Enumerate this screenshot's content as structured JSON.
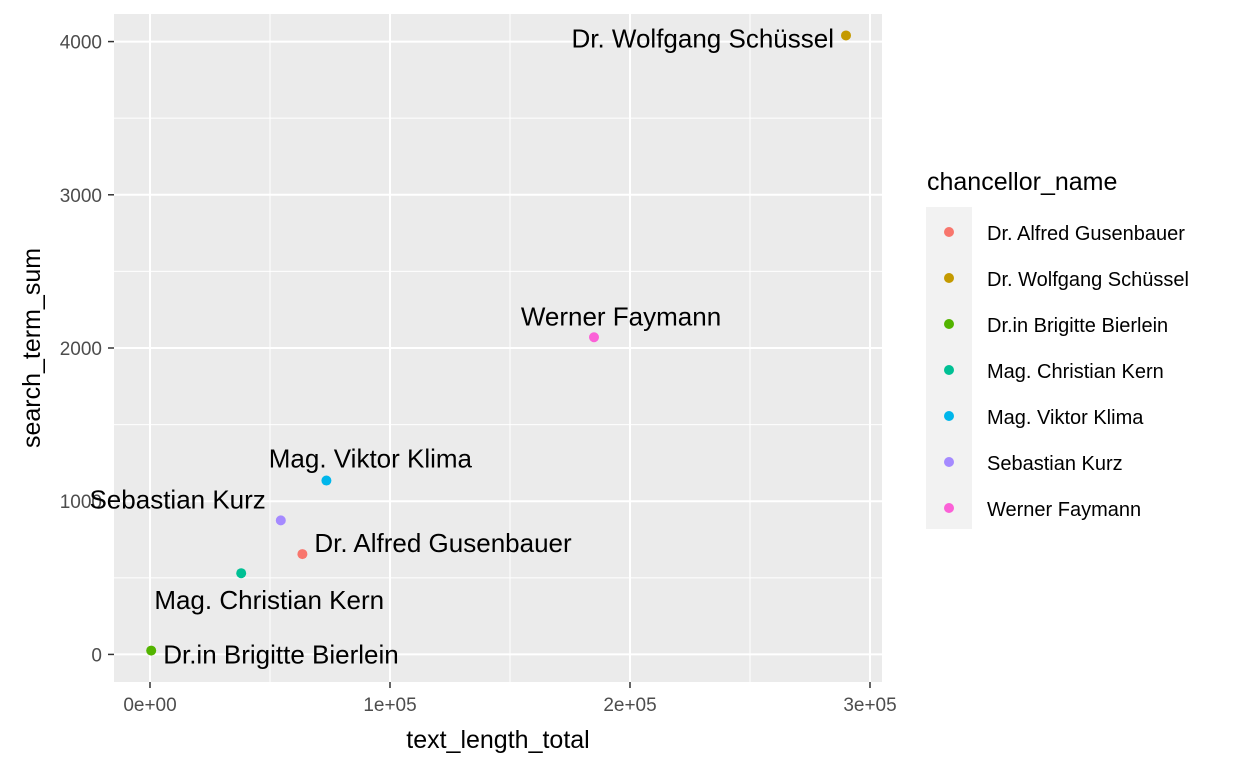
{
  "chart_data": {
    "type": "scatter",
    "xlabel": "text_length_total",
    "ylabel": "search_term_sum",
    "xlim": [
      -15000,
      305000
    ],
    "ylim": [
      -180,
      4180
    ],
    "x_ticks": [
      0,
      100000,
      200000,
      300000
    ],
    "x_tick_labels": [
      "0e+00",
      "1e+05",
      "2e+05",
      "3e+05"
    ],
    "y_ticks": [
      0,
      1000,
      2000,
      3000,
      4000
    ],
    "y_tick_labels": [
      "0",
      "1000",
      "2000",
      "3000",
      "4000"
    ],
    "grid": true,
    "legend": {
      "title": "chancellor_name",
      "placement": "right"
    },
    "series": [
      {
        "name": "Dr. Alfred Gusenbauer",
        "color": "#F8766D",
        "x": 63500,
        "y": 655
      },
      {
        "name": "Dr. Wolfgang Schüssel",
        "color": "#C49A00",
        "x": 290000,
        "y": 4040
      },
      {
        "name": "Dr.in Brigitte Bierlein",
        "color": "#53B400",
        "x": 500,
        "y": 25
      },
      {
        "name": "Mag. Christian Kern",
        "color": "#00C094",
        "x": 38000,
        "y": 530
      },
      {
        "name": "Mag. Viktor Klima",
        "color": "#00B6EB",
        "x": 73500,
        "y": 1135
      },
      {
        "name": "Sebastian Kurz",
        "color": "#A58AFF",
        "x": 54500,
        "y": 875
      },
      {
        "name": "Werner Faymann",
        "color": "#FB61D7",
        "x": 185000,
        "y": 2070
      }
    ]
  }
}
